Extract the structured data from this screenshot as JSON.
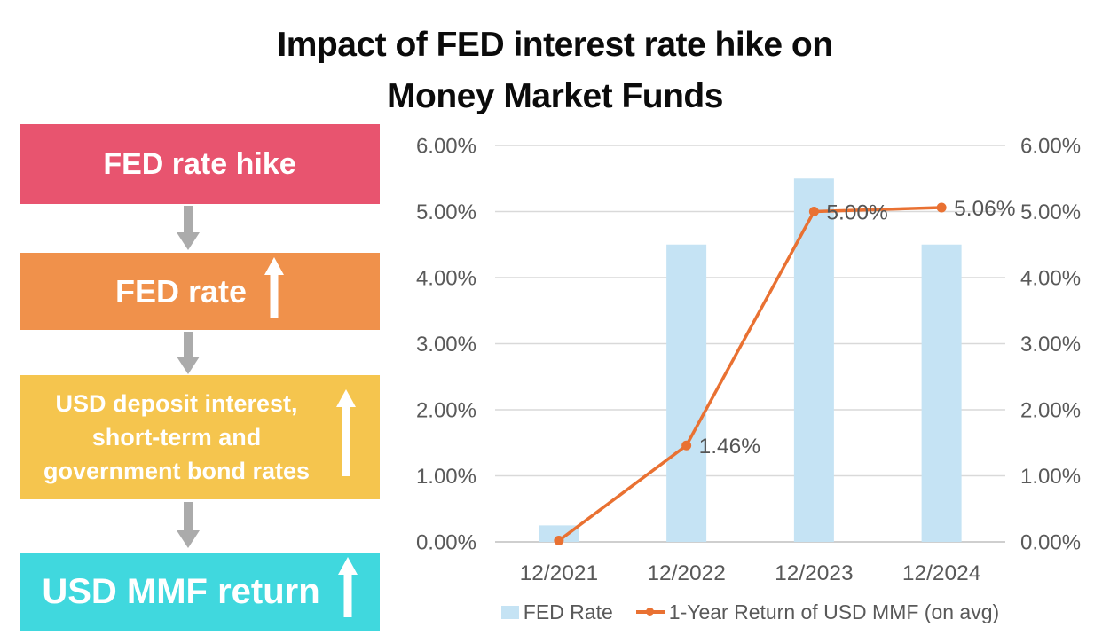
{
  "title": {
    "line1": "Impact of FED interest rate hike on",
    "line2": "Money Market Funds"
  },
  "flowchart": {
    "connector_color": "#ABABAB",
    "arrow_color": "#FFFFFF",
    "text_color": "#FFFFFF",
    "steps": [
      {
        "label": "FED rate hike",
        "color": "#E8546F",
        "up_arrow": false
      },
      {
        "label": "FED rate",
        "color": "#F0914B",
        "up_arrow": true
      },
      {
        "label": "USD deposit interest, short-term and government bond rates",
        "lines": [
          "USD deposit interest,",
          "short-term and",
          "government bond rates"
        ],
        "color": "#F5C54E",
        "up_arrow": true
      },
      {
        "label": "USD MMF return",
        "color": "#40D8DE",
        "up_arrow": true
      }
    ]
  },
  "chart_data": {
    "type": "bar",
    "subtype": "bar+line combo",
    "categories": [
      "12/2021",
      "12/2022",
      "12/2023",
      "12/2024"
    ],
    "series": [
      {
        "name": "FED Rate",
        "type": "bar",
        "color": "#C5E3F4",
        "values": [
          0.25,
          4.5,
          5.5,
          4.5
        ]
      },
      {
        "name": "1-Year Return of USD MMF (on avg)",
        "type": "line",
        "color": "#E97132",
        "values": [
          0.02,
          1.46,
          5.0,
          5.06
        ],
        "data_labels": [
          null,
          "1.46%",
          "5.00%",
          "5.06%"
        ]
      }
    ],
    "y_axis": {
      "min": 0,
      "max": 6,
      "step": 1,
      "ticks": [
        "0.00%",
        "1.00%",
        "2.00%",
        "3.00%",
        "4.00%",
        "5.00%",
        "6.00%"
      ],
      "sides": [
        "left",
        "right"
      ],
      "tick_color": "#595959"
    },
    "x_axis": {
      "label_color": "#595959"
    },
    "gridline_color": "#D9D9D9",
    "axisline_color": "#BFBFBF",
    "data_label_color": "#555555",
    "grid": true,
    "legend_position": "bottom"
  }
}
